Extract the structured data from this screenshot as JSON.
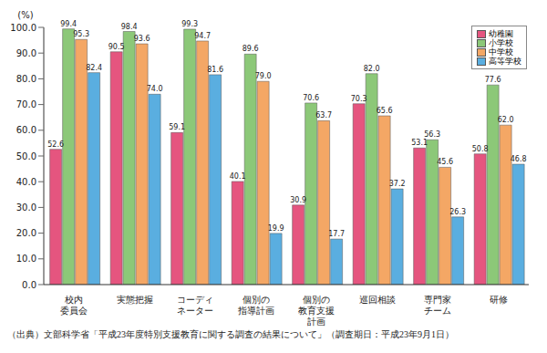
{
  "chart_data": {
    "type": "bar",
    "y_label": "(%)",
    "categories": [
      "校内\n委員会",
      "実態把握",
      "コーディ\nネーター",
      "個別の\n指導計画",
      "個別の\n教育支援\n計画",
      "巡回相談",
      "専門家\nチーム",
      "研修"
    ],
    "series": [
      {
        "name": "幼稚園",
        "color": "#e5557f",
        "values": [
          52.6,
          90.5,
          59.1,
          40.1,
          30.9,
          70.3,
          53.1,
          50.8
        ],
        "value_labels": [
          "52.6",
          "90.5",
          "59.1",
          "40.1",
          "30.9",
          "70.3",
          "53.1",
          "50.8"
        ]
      },
      {
        "name": "小学校",
        "color": "#8cc878",
        "values": [
          99.4,
          98.4,
          99.3,
          89.6,
          70.6,
          82.0,
          56.3,
          77.6
        ],
        "value_labels": [
          "99.4",
          "98.4",
          "99.3",
          "89.6",
          "70.6",
          "82.0",
          "56.3",
          "77.6"
        ]
      },
      {
        "name": "中学校",
        "color": "#f4a765",
        "values": [
          95.3,
          93.6,
          94.7,
          79.0,
          63.7,
          65.6,
          45.6,
          62.0
        ],
        "value_labels": [
          "95.3",
          "93.6",
          "94.7",
          "79.0",
          "63.7",
          "65.6",
          "45.6",
          "62.0"
        ]
      },
      {
        "name": "高等学校",
        "color": "#5aaee0",
        "values": [
          82.4,
          74.0,
          81.6,
          19.9,
          17.7,
          37.2,
          26.3,
          46.8
        ],
        "value_labels": [
          "82.4",
          "74.0",
          "81.6",
          "19.9",
          "17.7",
          "37.2",
          "26.3",
          "46.8"
        ]
      }
    ],
    "ylim": [
      0,
      100
    ],
    "yticks": [
      {
        "value": 0,
        "label": "0.0"
      },
      {
        "value": 10,
        "label": "10.0"
      },
      {
        "value": 20,
        "label": "20.0"
      },
      {
        "value": 30,
        "label": "30.0"
      },
      {
        "value": 40,
        "label": "40.0"
      },
      {
        "value": 50,
        "label": "50.0"
      },
      {
        "value": 60,
        "label": "60.0"
      },
      {
        "value": 70,
        "label": "70.0"
      },
      {
        "value": 80,
        "label": "80.0"
      },
      {
        "value": 90,
        "label": "90.0"
      },
      {
        "value": 100,
        "label": "100.0"
      }
    ],
    "grid": false,
    "data_labels": true,
    "legend": "top-right",
    "annotations": [
      "（出典）文部科学省「平成23年度特別支援教育に関する調査の結果について」（調査期日：平成23年9月1日）"
    ]
  }
}
